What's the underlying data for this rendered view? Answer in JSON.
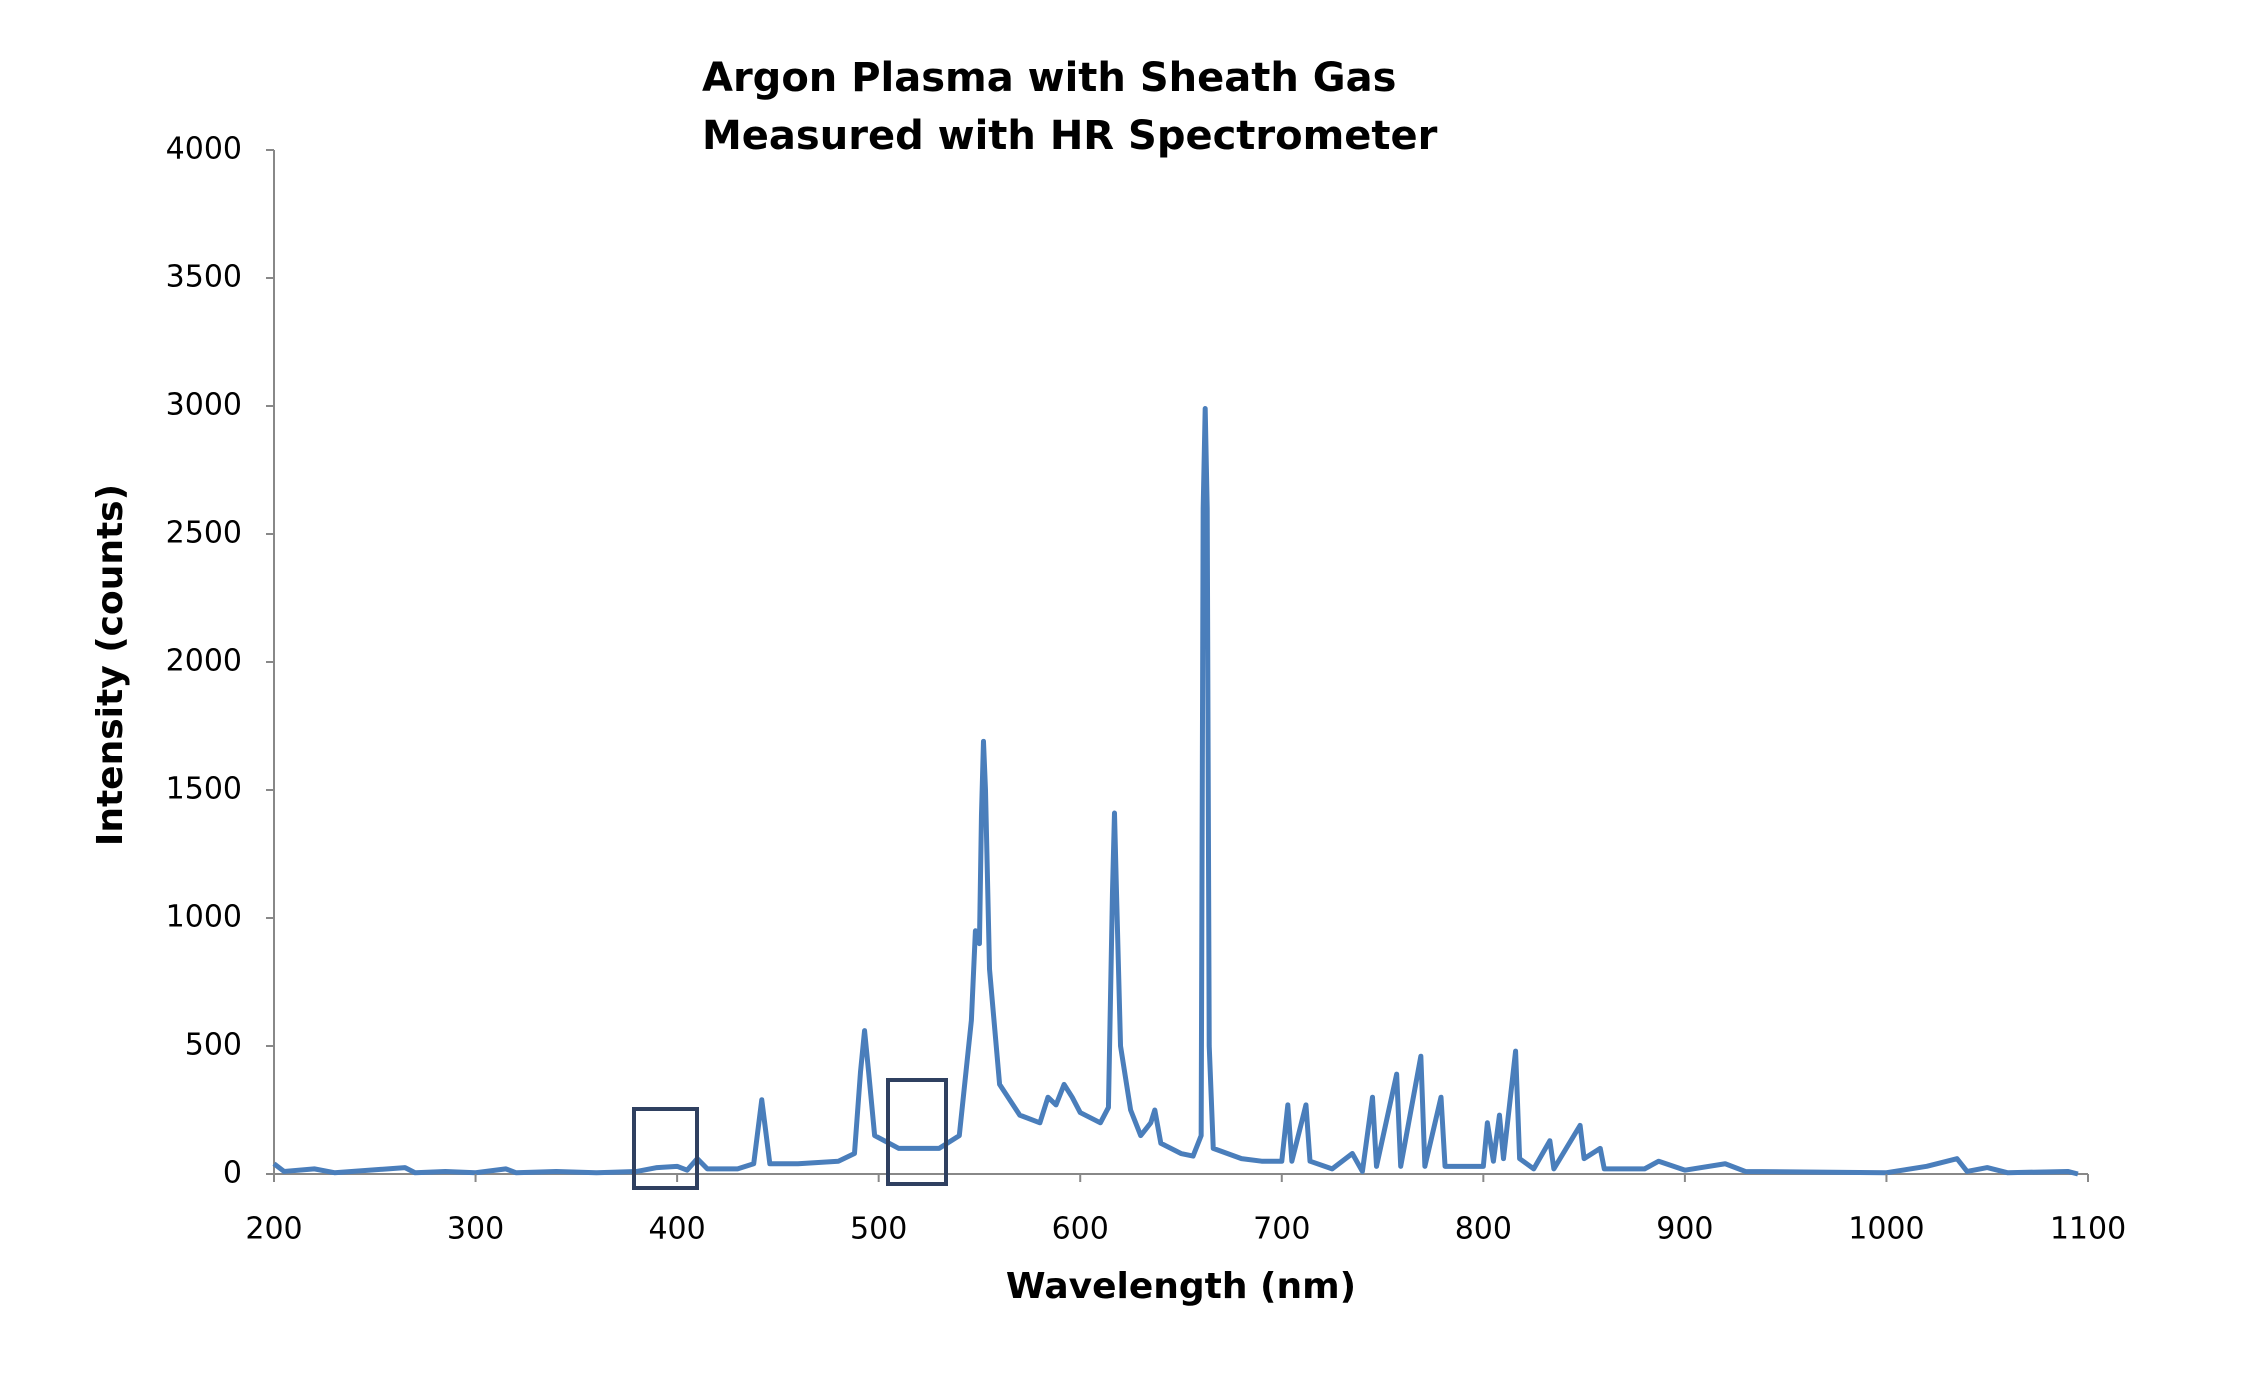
{
  "chart_data": {
    "type": "line",
    "title": "Argon Plasma with Sheath Gas",
    "subtitle": "Measured with HR Spectrometer",
    "x_label": "Wavelength (nm)",
    "y_label": "Intensity (counts)",
    "color": "#4a7ebb",
    "xlim": [
      200,
      1100
    ],
    "xticks": [
      200,
      300,
      400,
      500,
      600,
      700,
      800,
      900,
      1000,
      1100
    ],
    "ylim": [
      0,
      4000
    ],
    "yticks": [
      0,
      500,
      1000,
      1500,
      2000,
      2500,
      3000,
      3500,
      4000
    ],
    "grid": false,
    "x": [
      200,
      205,
      220,
      230,
      265,
      270,
      285,
      300,
      315,
      320,
      340,
      360,
      380,
      390,
      400,
      405,
      410,
      415,
      430,
      438,
      442,
      446,
      460,
      480,
      488,
      491,
      493,
      495,
      498,
      510,
      530,
      540,
      546,
      548,
      550,
      551,
      552,
      553,
      555,
      560,
      570,
      580,
      584,
      588,
      592,
      596,
      600,
      605,
      610,
      614,
      616,
      617,
      618,
      620,
      625,
      630,
      635,
      637,
      640,
      650,
      656,
      660,
      661,
      662,
      663,
      664,
      666,
      680,
      690,
      700,
      703,
      705,
      712,
      714,
      725,
      735,
      740,
      745,
      747,
      757,
      759,
      769,
      771,
      779,
      781,
      800,
      802,
      805,
      808,
      810,
      816,
      818,
      825,
      833,
      835,
      848,
      850,
      858,
      860,
      880,
      887,
      900,
      920,
      930,
      1000,
      1020,
      1035,
      1040,
      1050,
      1060,
      1090,
      1095
    ],
    "values": [
      40,
      10,
      20,
      5,
      25,
      5,
      10,
      5,
      20,
      5,
      10,
      5,
      10,
      25,
      30,
      15,
      60,
      20,
      20,
      40,
      290,
      40,
      40,
      50,
      80,
      400,
      560,
      400,
      150,
      100,
      100,
      150,
      600,
      950,
      900,
      1400,
      1690,
      1500,
      800,
      350,
      230,
      200,
      300,
      270,
      350,
      300,
      240,
      220,
      200,
      260,
      1100,
      1410,
      1100,
      500,
      250,
      150,
      200,
      250,
      120,
      80,
      70,
      150,
      2600,
      2990,
      2600,
      500,
      100,
      60,
      50,
      50,
      270,
      50,
      270,
      50,
      20,
      80,
      10,
      300,
      30,
      390,
      30,
      460,
      30,
      300,
      30,
      30,
      200,
      50,
      230,
      60,
      480,
      60,
      20,
      130,
      20,
      190,
      60,
      100,
      20,
      20,
      50,
      15,
      40,
      10,
      5,
      30,
      60,
      10,
      25,
      5,
      10,
      0
    ]
  }
}
